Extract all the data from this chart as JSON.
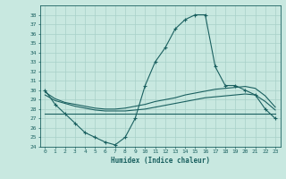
{
  "xlabel": "Humidex (Indice chaleur)",
  "bg_color": "#c8e8e0",
  "grid_color": "#a8d0c8",
  "line_color": "#1a6060",
  "xlim": [
    -0.5,
    23.5
  ],
  "ylim": [
    24,
    39
  ],
  "x_ticks": [
    0,
    1,
    2,
    3,
    4,
    5,
    6,
    7,
    8,
    9,
    10,
    11,
    12,
    13,
    14,
    15,
    16,
    17,
    18,
    19,
    20,
    21,
    22,
    23
  ],
  "y_ticks": [
    24,
    25,
    26,
    27,
    28,
    29,
    30,
    31,
    32,
    33,
    34,
    35,
    36,
    37,
    38
  ],
  "curve1_x": [
    0,
    1,
    2,
    3,
    4,
    5,
    6,
    7,
    8,
    9,
    10,
    11,
    12,
    13,
    14,
    15,
    16,
    17,
    18,
    19,
    20,
    21,
    22,
    23
  ],
  "curve1_y": [
    30.0,
    28.5,
    27.5,
    26.5,
    25.5,
    25.0,
    24.5,
    24.2,
    25.0,
    27.0,
    30.5,
    33.0,
    34.5,
    36.5,
    37.5,
    38.0,
    38.0,
    32.5,
    30.5,
    30.5,
    30.0,
    29.5,
    28.0,
    27.0
  ],
  "curve2_x": [
    0,
    23
  ],
  "curve2_y": [
    27.5,
    27.5
  ],
  "curve3_x": [
    0,
    1,
    2,
    3,
    4,
    5,
    6,
    7,
    8,
    9,
    10,
    11,
    12,
    13,
    14,
    15,
    16,
    17,
    18,
    19,
    20,
    21,
    22,
    23
  ],
  "curve3_y": [
    29.8,
    29.1,
    28.7,
    28.5,
    28.3,
    28.1,
    28.0,
    28.0,
    28.1,
    28.3,
    28.5,
    28.8,
    29.0,
    29.2,
    29.5,
    29.7,
    29.9,
    30.1,
    30.2,
    30.3,
    30.4,
    30.2,
    29.4,
    28.2
  ],
  "curve4_x": [
    0,
    1,
    2,
    3,
    4,
    5,
    6,
    7,
    8,
    9,
    10,
    11,
    12,
    13,
    14,
    15,
    16,
    17,
    18,
    19,
    20,
    21,
    22,
    23
  ],
  "curve4_y": [
    29.5,
    28.9,
    28.6,
    28.3,
    28.1,
    27.9,
    27.8,
    27.8,
    27.8,
    27.9,
    28.0,
    28.2,
    28.4,
    28.6,
    28.8,
    29.0,
    29.2,
    29.3,
    29.4,
    29.5,
    29.6,
    29.5,
    28.8,
    27.9
  ]
}
